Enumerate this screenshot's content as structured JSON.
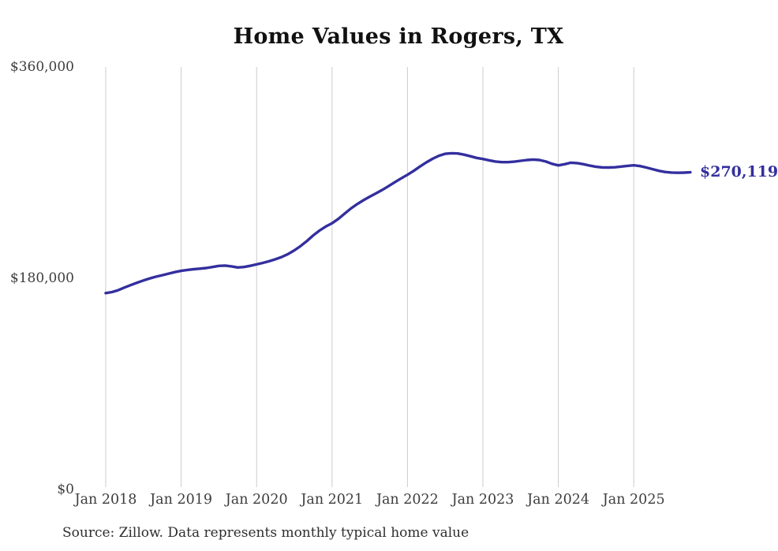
{
  "chart": {
    "title": "Home Values in Rogers, TX",
    "end_label": "$270,119",
    "source": "Source: Zillow. Data represents monthly typical home value",
    "colors": {
      "line": "#332f9e",
      "grid": "#cccccc",
      "axis_text": "#3d3d3d",
      "title": "#111111",
      "source": "#2e2e2e"
    }
  },
  "chart_data": {
    "type": "line",
    "title": "Home Values in Rogers, TX",
    "xlabel": "",
    "ylabel": "",
    "x_start": "2018-01",
    "x_end": "2025-10",
    "x_tick_labels": [
      "Jan 2018",
      "Jan 2019",
      "Jan 2020",
      "Jan 2021",
      "Jan 2022",
      "Jan 2023",
      "Jan 2024",
      "Jan 2025"
    ],
    "y_ticks": [
      0,
      180000,
      360000
    ],
    "y_tick_labels": [
      "$0",
      "$180,000",
      "$360,000"
    ],
    "ylim": [
      0,
      360000
    ],
    "grid": "vertical-only",
    "legend": "none",
    "end_value": 270119,
    "end_value_label": "$270,119",
    "series": [
      {
        "name": "Monthly typical home value",
        "values": [
          167000,
          167900,
          169500,
          171800,
          173900,
          175900,
          177800,
          179500,
          181000,
          182300,
          183600,
          184900,
          186000,
          186800,
          187400,
          187900,
          188400,
          189300,
          190200,
          190500,
          189800,
          188900,
          189300,
          190300,
          191500,
          192800,
          194200,
          195900,
          197800,
          200300,
          203500,
          207200,
          211400,
          216200,
          220400,
          223800,
          226600,
          230300,
          234800,
          239200,
          243000,
          246300,
          249300,
          252200,
          255100,
          258300,
          261700,
          264900,
          268000,
          271400,
          275100,
          278600,
          281700,
          284200,
          285900,
          286400,
          286200,
          285200,
          283800,
          282400,
          281500,
          280300,
          279300,
          278800,
          278800,
          279200,
          279900,
          280600,
          281000,
          280600,
          279300,
          277400,
          276000,
          277000,
          278300,
          278000,
          277000,
          275800,
          274800,
          274300,
          274200,
          274400,
          275000,
          275600,
          276100,
          275400,
          274200,
          272800,
          271400,
          270400,
          269900,
          269700,
          269800,
          270119
        ]
      }
    ]
  }
}
